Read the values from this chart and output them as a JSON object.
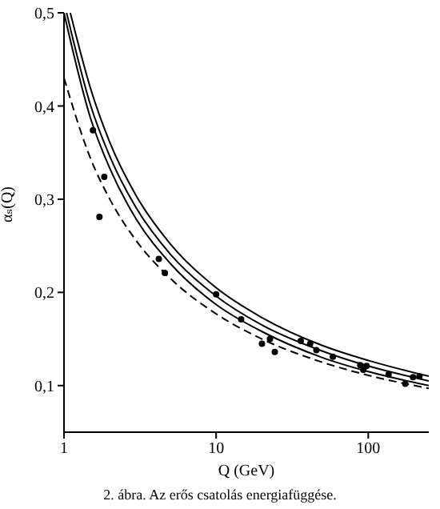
{
  "chart_data": {
    "type": "line",
    "xlabel": "Q (GeV)",
    "ylabel": "αₛ(Q)",
    "log": "x",
    "xlim": [
      1,
      250
    ],
    "xticks": [
      1,
      10,
      100
    ],
    "ylim": [
      0.05,
      0.5
    ],
    "yticks": [
      {
        "value": 0.1,
        "label": "0,1"
      },
      {
        "value": 0.2,
        "label": "0,2"
      },
      {
        "value": 0.3,
        "label": "0,3"
      },
      {
        "value": 0.4,
        "label": "0,4"
      },
      {
        "value": 0.5,
        "label": "0,5"
      }
    ],
    "grid": false,
    "legend": false,
    "marker": "none",
    "annotations": [
      "2. ábra. Az erős csatolás energiafüggése."
    ],
    "series": [
      {
        "color": "#000000",
        "line_style": "solid",
        "x": [
          1.1,
          1.5,
          2,
          3,
          5,
          10,
          20,
          50,
          100,
          250
        ],
        "values": [
          0.5,
          0.418,
          0.361,
          0.303,
          0.252,
          0.205,
          0.173,
          0.143,
          0.127,
          0.11
        ]
      },
      {
        "color": "#000000",
        "line_style": "solid",
        "x": [
          1.04,
          1.5,
          2,
          3,
          5,
          10,
          20,
          50,
          100,
          250
        ],
        "values": [
          0.5,
          0.4,
          0.346,
          0.29,
          0.241,
          0.196,
          0.165,
          0.137,
          0.121,
          0.105
        ]
      },
      {
        "color": "#000000",
        "line_style": "solid",
        "x": [
          1,
          1.5,
          2,
          3,
          5,
          10,
          20,
          50,
          100,
          250
        ],
        "values": [
          0.5,
          0.386,
          0.333,
          0.278,
          0.231,
          0.187,
          0.158,
          0.13,
          0.115,
          0.1
        ]
      },
      {
        "color": "#000000",
        "line_style": "dashed",
        "x": [
          1,
          1.5,
          2,
          3,
          5,
          10,
          20,
          50,
          100,
          250
        ],
        "values": [
          0.43,
          0.343,
          0.3,
          0.255,
          0.215,
          0.177,
          0.15,
          0.125,
          0.111,
          0.097
        ]
      },
      {
        "type": "scatter",
        "color": "#000000",
        "marker": "circle",
        "x": [
          1.55,
          1.84,
          1.71,
          4.2,
          4.6,
          10,
          14.6,
          20,
          22.6,
          24.3,
          36,
          41.5,
          45.6,
          58.5,
          88.6,
          92.8,
          97.5,
          136,
          175,
          197,
          217
        ],
        "values": [
          0.374,
          0.324,
          0.281,
          0.236,
          0.221,
          0.198,
          0.171,
          0.145,
          0.15,
          0.136,
          0.148,
          0.145,
          0.138,
          0.131,
          0.122,
          0.117,
          0.121,
          0.112,
          0.102,
          0.109,
          0.11
        ]
      }
    ]
  }
}
